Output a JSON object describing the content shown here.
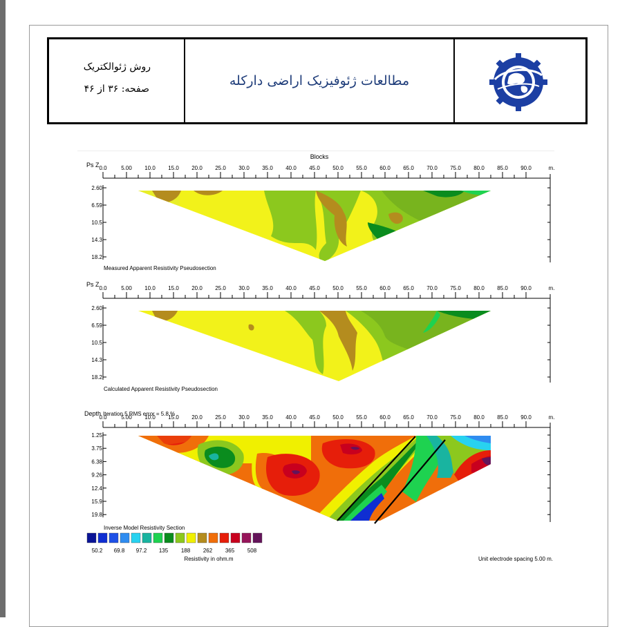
{
  "header": {
    "method_label": "روش ژئوالکتریک",
    "page_label": "صفحه: ۳۶ از ۴۶",
    "title": "مطالعات ژئوفیزیک اراضی دارکله",
    "logo_icon": "globe-gear-logo-icon"
  },
  "chart_data": {
    "type": "heatmap",
    "title": "Blocks",
    "x_ticks": [
      "0.0",
      "5.00",
      "10.0",
      "15.0",
      "20.0",
      "25.0",
      "30.0",
      "35.0",
      "40.0",
      "45.0",
      "50.0",
      "55.0",
      "60.0",
      "65.0",
      "70.0",
      "75.0",
      "80.0",
      "85.0",
      "90.0"
    ],
    "x_unit": "m.",
    "panels": [
      {
        "axis_label": "Ps Z",
        "depth_ticks": [
          "2.60",
          "6.59",
          "10.5",
          "14.3",
          "18.2"
        ],
        "caption": "Measured Apparent Resistivity Pseudosection"
      },
      {
        "axis_label": "Ps Z",
        "depth_ticks": [
          "2.60",
          "6.59",
          "10.5",
          "14.3",
          "18.2"
        ],
        "caption": "Calculated Apparent Resistivity Pseudosection"
      },
      {
        "axis_label": "Depth",
        "iteration_label": "Iteration 5 RMS error = 5.8 %",
        "depth_ticks": [
          "1.25",
          "3.75",
          "6.38",
          "9.26",
          "12.4",
          "15.9",
          "19.8"
        ],
        "caption": "Inverse Model Resistivity Section"
      }
    ],
    "colorscale": {
      "colors": [
        "#0a1496",
        "#0f2ed2",
        "#1e50e6",
        "#2f8cf0",
        "#28d2f0",
        "#19b4a0",
        "#1ed250",
        "#0a8c1e",
        "#8cc81e",
        "#f0f000",
        "#b48c1e",
        "#f06e0a",
        "#e61e0a",
        "#c8001e",
        "#96145a",
        "#64145a"
      ],
      "tick_labels": [
        "50.2",
        "69.8",
        "97.2",
        "135",
        "188",
        "262",
        "365",
        "508"
      ],
      "label": "Resistivity in ohm.m"
    },
    "electrode_note": "Unit electrode spacing 5.00 m."
  }
}
